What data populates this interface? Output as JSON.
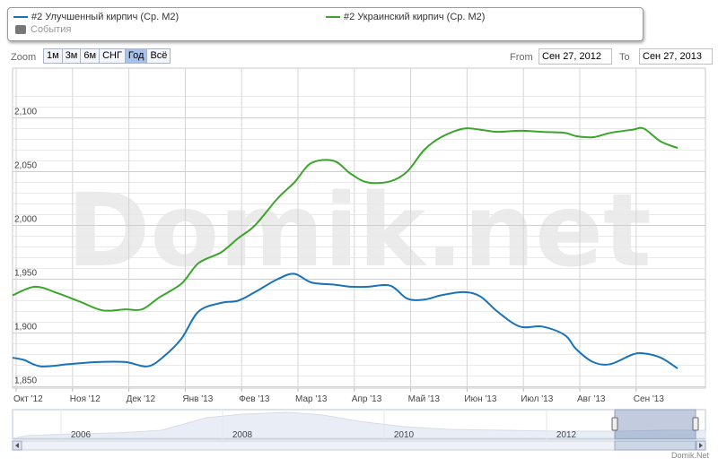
{
  "legend": {
    "series": [
      {
        "name": "#2 Улучшенный кирпич (Ср. M2)",
        "color": "#1a73b8"
      },
      {
        "name": "#2 Украинский кирпич (Ср. M2)",
        "color": "#3ba52b"
      }
    ],
    "events_label": "События"
  },
  "zoom": {
    "label": "Zoom",
    "buttons": [
      "1м",
      "3м",
      "6м",
      "СНГ",
      "Год",
      "Всё"
    ],
    "active": "Год"
  },
  "range": {
    "from_label": "From",
    "from_value": "Сен 27, 2012",
    "to_label": "To",
    "to_value": "Сен 27, 2013"
  },
  "watermark": "Domik.net",
  "credit": "Domik.Net",
  "chart_data": {
    "type": "line",
    "x_ticks": [
      "Окт '12",
      "Ноя '12",
      "Дек '12",
      "Янв '13",
      "Фев '13",
      "Мар '13",
      "Апр '13",
      "Май '13",
      "Июн '13",
      "Июл '13",
      "Авг '13",
      "Сен '13"
    ],
    "y_ticks": [
      "1,850",
      "1,900",
      "1,950",
      "2,000",
      "2,050",
      "2,100"
    ],
    "ylim": [
      1850,
      2100
    ],
    "grid": true,
    "series": [
      {
        "name": "#2 Улучшенный кирпич (Ср. M2)",
        "color": "#1a73b8",
        "x": [
          0,
          0.2,
          0.5,
          1.0,
          1.5,
          2.0,
          2.4,
          2.7,
          3.0,
          3.3,
          3.7,
          4.0,
          4.3,
          4.7,
          5.0,
          5.3,
          5.7,
          6.0,
          6.3,
          6.7,
          7.0,
          7.3,
          7.6,
          8.0,
          8.3,
          8.6,
          9.0,
          9.4,
          9.8,
          10.0,
          10.3,
          10.6,
          11.0,
          11.2,
          11.5,
          11.8
        ],
        "y": [
          1877,
          1875,
          1869,
          1871,
          1873,
          1873,
          1869,
          1879,
          1895,
          1920,
          1928,
          1930,
          1938,
          1950,
          1955,
          1947,
          1945,
          1943,
          1943,
          1944,
          1932,
          1931,
          1935,
          1938,
          1934,
          1920,
          1906,
          1906,
          1898,
          1885,
          1873,
          1871,
          1880,
          1881,
          1877,
          1867
        ]
      },
      {
        "name": "#2 Украинский кирпич (Ср. M2)",
        "color": "#3ba52b",
        "x": [
          0,
          0.4,
          0.8,
          1.2,
          1.6,
          2.0,
          2.3,
          2.6,
          3.0,
          3.3,
          3.7,
          4.0,
          4.3,
          4.7,
          5.0,
          5.3,
          5.7,
          6.0,
          6.3,
          6.7,
          7.0,
          7.3,
          7.6,
          8.0,
          8.3,
          8.6,
          9.0,
          9.4,
          9.8,
          10.0,
          10.3,
          10.6,
          11.0,
          11.2,
          11.5,
          11.8
        ],
        "y": [
          1935,
          1943,
          1937,
          1929,
          1921,
          1922,
          1922,
          1933,
          1946,
          1965,
          1975,
          1988,
          2000,
          2025,
          2040,
          2058,
          2060,
          2048,
          2040,
          2041,
          2050,
          2070,
          2082,
          2090,
          2089,
          2087,
          2088,
          2087,
          2086,
          2083,
          2082,
          2086,
          2089,
          2090,
          2078,
          2072
        ]
      }
    ],
    "navigator": {
      "x_ticks": [
        "2006",
        "2008",
        "2010",
        "2012"
      ]
    }
  }
}
